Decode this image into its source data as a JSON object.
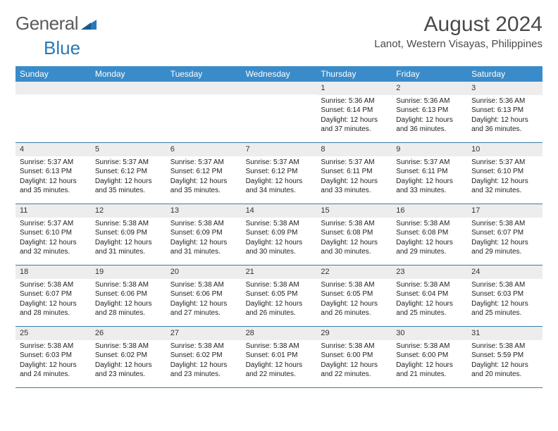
{
  "logo": {
    "text1": "General",
    "text2": "Blue"
  },
  "title": "August 2024",
  "location": "Lanot, Western Visayas, Philippines",
  "colors": {
    "header_bg": "#3a8bc9",
    "header_text": "#ffffff",
    "daynum_bg": "#ededed",
    "border": "#3a7ca8",
    "text": "#333333",
    "logo_gray": "#5c5c5c",
    "logo_blue": "#2a79b8"
  },
  "weekdays": [
    "Sunday",
    "Monday",
    "Tuesday",
    "Wednesday",
    "Thursday",
    "Friday",
    "Saturday"
  ],
  "weeks": [
    [
      {
        "n": "",
        "sr": "",
        "ss": "",
        "dl": ""
      },
      {
        "n": "",
        "sr": "",
        "ss": "",
        "dl": ""
      },
      {
        "n": "",
        "sr": "",
        "ss": "",
        "dl": ""
      },
      {
        "n": "",
        "sr": "",
        "ss": "",
        "dl": ""
      },
      {
        "n": "1",
        "sr": "Sunrise: 5:36 AM",
        "ss": "Sunset: 6:14 PM",
        "dl": "Daylight: 12 hours and 37 minutes."
      },
      {
        "n": "2",
        "sr": "Sunrise: 5:36 AM",
        "ss": "Sunset: 6:13 PM",
        "dl": "Daylight: 12 hours and 36 minutes."
      },
      {
        "n": "3",
        "sr": "Sunrise: 5:36 AM",
        "ss": "Sunset: 6:13 PM",
        "dl": "Daylight: 12 hours and 36 minutes."
      }
    ],
    [
      {
        "n": "4",
        "sr": "Sunrise: 5:37 AM",
        "ss": "Sunset: 6:13 PM",
        "dl": "Daylight: 12 hours and 35 minutes."
      },
      {
        "n": "5",
        "sr": "Sunrise: 5:37 AM",
        "ss": "Sunset: 6:12 PM",
        "dl": "Daylight: 12 hours and 35 minutes."
      },
      {
        "n": "6",
        "sr": "Sunrise: 5:37 AM",
        "ss": "Sunset: 6:12 PM",
        "dl": "Daylight: 12 hours and 35 minutes."
      },
      {
        "n": "7",
        "sr": "Sunrise: 5:37 AM",
        "ss": "Sunset: 6:12 PM",
        "dl": "Daylight: 12 hours and 34 minutes."
      },
      {
        "n": "8",
        "sr": "Sunrise: 5:37 AM",
        "ss": "Sunset: 6:11 PM",
        "dl": "Daylight: 12 hours and 33 minutes."
      },
      {
        "n": "9",
        "sr": "Sunrise: 5:37 AM",
        "ss": "Sunset: 6:11 PM",
        "dl": "Daylight: 12 hours and 33 minutes."
      },
      {
        "n": "10",
        "sr": "Sunrise: 5:37 AM",
        "ss": "Sunset: 6:10 PM",
        "dl": "Daylight: 12 hours and 32 minutes."
      }
    ],
    [
      {
        "n": "11",
        "sr": "Sunrise: 5:37 AM",
        "ss": "Sunset: 6:10 PM",
        "dl": "Daylight: 12 hours and 32 minutes."
      },
      {
        "n": "12",
        "sr": "Sunrise: 5:38 AM",
        "ss": "Sunset: 6:09 PM",
        "dl": "Daylight: 12 hours and 31 minutes."
      },
      {
        "n": "13",
        "sr": "Sunrise: 5:38 AM",
        "ss": "Sunset: 6:09 PM",
        "dl": "Daylight: 12 hours and 31 minutes."
      },
      {
        "n": "14",
        "sr": "Sunrise: 5:38 AM",
        "ss": "Sunset: 6:09 PM",
        "dl": "Daylight: 12 hours and 30 minutes."
      },
      {
        "n": "15",
        "sr": "Sunrise: 5:38 AM",
        "ss": "Sunset: 6:08 PM",
        "dl": "Daylight: 12 hours and 30 minutes."
      },
      {
        "n": "16",
        "sr": "Sunrise: 5:38 AM",
        "ss": "Sunset: 6:08 PM",
        "dl": "Daylight: 12 hours and 29 minutes."
      },
      {
        "n": "17",
        "sr": "Sunrise: 5:38 AM",
        "ss": "Sunset: 6:07 PM",
        "dl": "Daylight: 12 hours and 29 minutes."
      }
    ],
    [
      {
        "n": "18",
        "sr": "Sunrise: 5:38 AM",
        "ss": "Sunset: 6:07 PM",
        "dl": "Daylight: 12 hours and 28 minutes."
      },
      {
        "n": "19",
        "sr": "Sunrise: 5:38 AM",
        "ss": "Sunset: 6:06 PM",
        "dl": "Daylight: 12 hours and 28 minutes."
      },
      {
        "n": "20",
        "sr": "Sunrise: 5:38 AM",
        "ss": "Sunset: 6:06 PM",
        "dl": "Daylight: 12 hours and 27 minutes."
      },
      {
        "n": "21",
        "sr": "Sunrise: 5:38 AM",
        "ss": "Sunset: 6:05 PM",
        "dl": "Daylight: 12 hours and 26 minutes."
      },
      {
        "n": "22",
        "sr": "Sunrise: 5:38 AM",
        "ss": "Sunset: 6:05 PM",
        "dl": "Daylight: 12 hours and 26 minutes."
      },
      {
        "n": "23",
        "sr": "Sunrise: 5:38 AM",
        "ss": "Sunset: 6:04 PM",
        "dl": "Daylight: 12 hours and 25 minutes."
      },
      {
        "n": "24",
        "sr": "Sunrise: 5:38 AM",
        "ss": "Sunset: 6:03 PM",
        "dl": "Daylight: 12 hours and 25 minutes."
      }
    ],
    [
      {
        "n": "25",
        "sr": "Sunrise: 5:38 AM",
        "ss": "Sunset: 6:03 PM",
        "dl": "Daylight: 12 hours and 24 minutes."
      },
      {
        "n": "26",
        "sr": "Sunrise: 5:38 AM",
        "ss": "Sunset: 6:02 PM",
        "dl": "Daylight: 12 hours and 23 minutes."
      },
      {
        "n": "27",
        "sr": "Sunrise: 5:38 AM",
        "ss": "Sunset: 6:02 PM",
        "dl": "Daylight: 12 hours and 23 minutes."
      },
      {
        "n": "28",
        "sr": "Sunrise: 5:38 AM",
        "ss": "Sunset: 6:01 PM",
        "dl": "Daylight: 12 hours and 22 minutes."
      },
      {
        "n": "29",
        "sr": "Sunrise: 5:38 AM",
        "ss": "Sunset: 6:00 PM",
        "dl": "Daylight: 12 hours and 22 minutes."
      },
      {
        "n": "30",
        "sr": "Sunrise: 5:38 AM",
        "ss": "Sunset: 6:00 PM",
        "dl": "Daylight: 12 hours and 21 minutes."
      },
      {
        "n": "31",
        "sr": "Sunrise: 5:38 AM",
        "ss": "Sunset: 5:59 PM",
        "dl": "Daylight: 12 hours and 20 minutes."
      }
    ]
  ]
}
